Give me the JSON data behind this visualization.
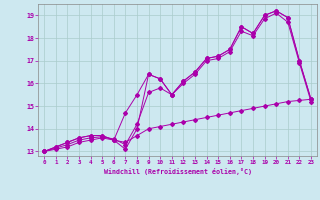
{
  "title": "",
  "xlabel": "Windchill (Refroidissement éolien,°C)",
  "ylabel": "",
  "xlim": [
    -0.5,
    23.5
  ],
  "ylim": [
    12.8,
    19.5
  ],
  "xticks": [
    0,
    1,
    2,
    3,
    4,
    5,
    6,
    7,
    8,
    9,
    10,
    11,
    12,
    13,
    14,
    15,
    16,
    17,
    18,
    19,
    20,
    21,
    22,
    23
  ],
  "yticks": [
    13,
    14,
    15,
    16,
    17,
    18,
    19
  ],
  "bg_color": "#cde8f0",
  "line_color": "#aa00aa",
  "grid_color": "#aacccc",
  "line1_x": [
    0,
    1,
    2,
    3,
    4,
    5,
    6,
    7,
    8,
    9,
    10,
    11,
    12,
    13,
    14,
    15,
    16,
    17,
    18,
    19,
    20,
    21,
    22,
    23
  ],
  "line1_y": [
    13.0,
    13.2,
    13.4,
    13.6,
    13.7,
    13.7,
    13.5,
    13.1,
    14.0,
    16.4,
    16.2,
    15.5,
    16.1,
    16.5,
    17.1,
    17.2,
    17.5,
    18.5,
    18.2,
    19.0,
    19.2,
    18.9,
    17.0,
    15.3
  ],
  "line2_x": [
    0,
    1,
    2,
    3,
    4,
    5,
    6,
    7,
    8,
    9,
    10,
    11,
    12,
    13,
    14,
    15,
    16,
    17,
    18,
    19,
    20,
    21,
    22,
    23
  ],
  "line2_y": [
    13.0,
    13.2,
    13.4,
    13.6,
    13.7,
    13.7,
    13.5,
    14.7,
    15.5,
    16.4,
    16.2,
    15.5,
    16.1,
    16.5,
    17.1,
    17.2,
    17.5,
    18.5,
    18.2,
    19.0,
    19.2,
    18.9,
    17.0,
    15.3
  ],
  "line3_x": [
    0,
    1,
    2,
    3,
    4,
    5,
    6,
    7,
    8,
    9,
    10,
    11,
    12,
    13,
    14,
    15,
    16,
    17,
    18,
    19,
    20,
    21,
    22,
    23
  ],
  "line3_y": [
    13.0,
    13.15,
    13.3,
    13.5,
    13.6,
    13.65,
    13.55,
    13.3,
    14.2,
    15.6,
    15.8,
    15.5,
    16.0,
    16.4,
    17.0,
    17.1,
    17.4,
    18.3,
    18.1,
    18.85,
    19.1,
    18.7,
    16.9,
    15.2
  ],
  "line4_x": [
    0,
    1,
    2,
    3,
    4,
    5,
    6,
    7,
    8,
    9,
    10,
    11,
    12,
    13,
    14,
    15,
    16,
    17,
    18,
    19,
    20,
    21,
    22,
    23
  ],
  "line4_y": [
    13.0,
    13.1,
    13.2,
    13.4,
    13.5,
    13.6,
    13.5,
    13.4,
    13.7,
    14.0,
    14.1,
    14.2,
    14.3,
    14.4,
    14.5,
    14.6,
    14.7,
    14.8,
    14.9,
    15.0,
    15.1,
    15.2,
    15.25,
    15.3
  ]
}
